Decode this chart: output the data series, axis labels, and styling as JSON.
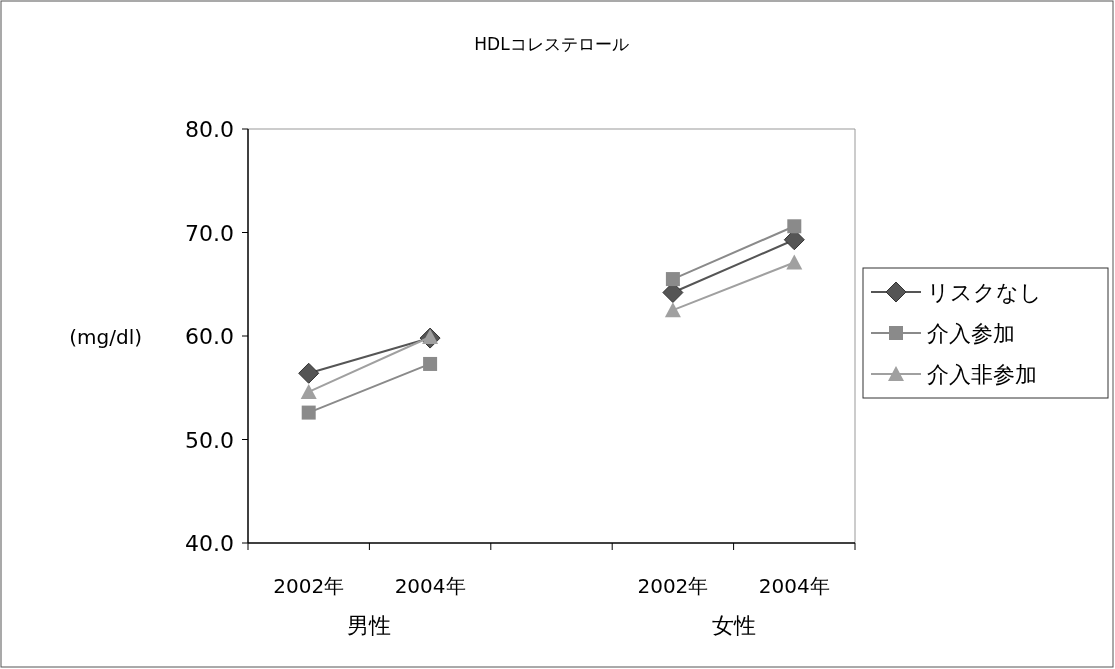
{
  "chart_data": {
    "type": "line",
    "title": "HDLコレステロール",
    "ylabel": "(mg/dl)",
    "categories": [
      "2002年",
      "2004年",
      null,
      "2002年",
      "2004年"
    ],
    "annotations": [
      "男性",
      "女性"
    ],
    "series": [
      {
        "name": "リスクなし",
        "color": "#555555",
        "marker": "diamond",
        "values": [
          56.4,
          59.8,
          null,
          64.2,
          69.3
        ]
      },
      {
        "name": "介入参加",
        "color": "#8a8a8a",
        "marker": "square",
        "values": [
          52.6,
          57.3,
          null,
          65.5,
          70.6
        ]
      },
      {
        "name": "介入非参加",
        "color": "#a0a0a0",
        "marker": "triangle",
        "values": [
          54.6,
          59.9,
          null,
          62.5,
          67.1
        ]
      }
    ],
    "ylim": [
      40,
      80
    ],
    "yticks": [
      {
        "value": 40,
        "label": "40.0"
      },
      {
        "value": 50,
        "label": "50.0"
      },
      {
        "value": 60,
        "label": "60.0"
      },
      {
        "value": 70,
        "label": "70.0"
      },
      {
        "value": 80,
        "label": "80.0"
      }
    ],
    "grid": false,
    "legend": "right"
  }
}
